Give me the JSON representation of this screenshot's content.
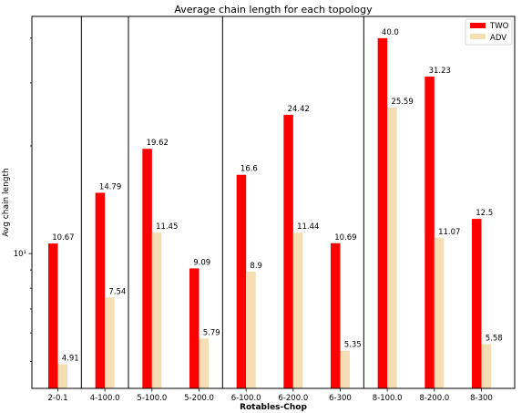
{
  "chart_data": {
    "type": "bar",
    "title": "Average chain length for each topology",
    "xlabel": "Rotables-Chop",
    "ylabel": "Avg chain length",
    "yscale": "log",
    "ylim": [
      4.2,
      46
    ],
    "y_tick_labels": [
      {
        "value": 10,
        "label": "10¹"
      }
    ],
    "categories": [
      "2-0.1",
      "4-100.0",
      "5-100.0",
      "5-200.0",
      "6-100.0",
      "6-200.0",
      "6-300",
      "8-100.0",
      "8-200.0",
      "8-300"
    ],
    "series": [
      {
        "name": "TWO",
        "color": "#ff0000",
        "values": [
          10.67,
          14.79,
          19.62,
          9.09,
          16.6,
          24.42,
          10.69,
          40.0,
          31.23,
          12.5
        ],
        "labels": [
          "10.67",
          "14.79",
          "19.62",
          "9.09",
          "16.6",
          "24.42",
          "10.69",
          "40.0",
          "31.23",
          "12.5"
        ]
      },
      {
        "name": "ADV",
        "color": "#f5deb3",
        "values": [
          4.91,
          7.54,
          11.45,
          5.79,
          8.9,
          11.44,
          5.35,
          25.59,
          11.07,
          5.58
        ],
        "labels": [
          "4.91",
          "7.54",
          "11.45",
          "5.79",
          "8.9",
          "11.44",
          "5.35",
          "25.59",
          "11.07",
          "5.58"
        ]
      }
    ],
    "group_separators_after": [
      "2-0.1",
      "4-100.0",
      "5-200.0",
      "6-300"
    ],
    "grid": false,
    "legend": "top-right"
  }
}
